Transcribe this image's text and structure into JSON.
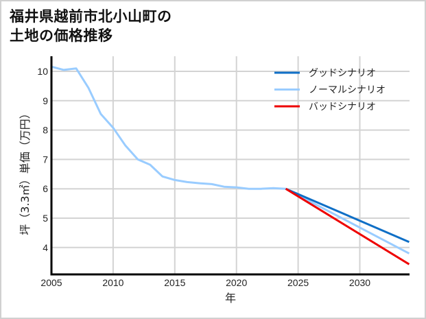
{
  "title_line1": "福井県越前市北小山町の",
  "title_line2": "土地の価格推移",
  "chart_data": {
    "type": "line",
    "title": "福井県越前市北小山町の土地の価格推移",
    "xlabel": "年",
    "ylabel": "坪（3.3㎡）単価（万円）",
    "xlim": [
      2005,
      2034
    ],
    "ylim": [
      3.1,
      10.5
    ],
    "xticks": [
      2005,
      2010,
      2015,
      2020,
      2025,
      2030
    ],
    "yticks": [
      4,
      5,
      6,
      7,
      8,
      9,
      10
    ],
    "grid": true,
    "legend_position": "upper right",
    "series": [
      {
        "name": "グッドシナリオ",
        "color": "#0f6fc6",
        "x": [
          2024,
          2034
        ],
        "values": [
          6.0,
          4.19
        ]
      },
      {
        "name": "ノーマルシナリオ",
        "color": "#99ccff",
        "x": [
          2005,
          2006,
          2007,
          2008,
          2009,
          2010,
          2011,
          2012,
          2013,
          2014,
          2015,
          2016,
          2017,
          2018,
          2019,
          2020,
          2021,
          2022,
          2023,
          2024,
          2034
        ],
        "values": [
          10.16,
          10.05,
          10.1,
          9.44,
          8.55,
          8.08,
          7.47,
          7.0,
          6.82,
          6.42,
          6.3,
          6.23,
          6.19,
          6.16,
          6.07,
          6.05,
          6.0,
          6.0,
          6.02,
          6.0,
          3.8
        ]
      },
      {
        "name": "バッドシナリオ",
        "color": "#ee0000",
        "x": [
          2024,
          2034
        ],
        "values": [
          6.0,
          3.43
        ]
      }
    ]
  }
}
